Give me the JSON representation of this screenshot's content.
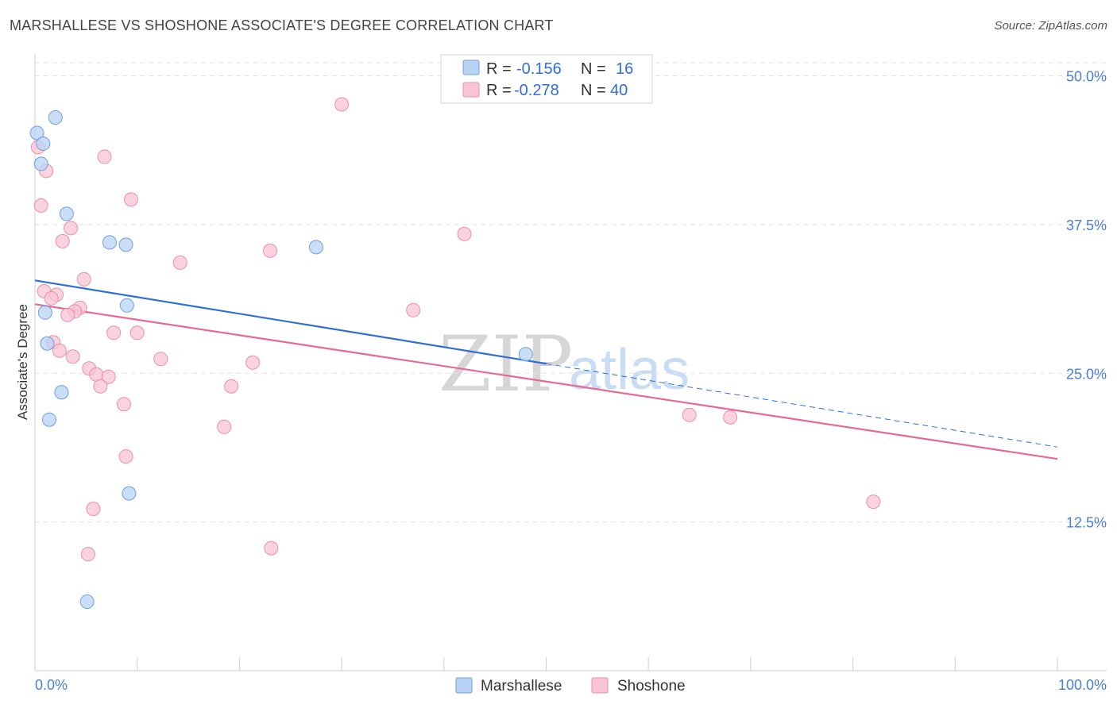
{
  "title": "MARSHALLESE VS SHOSHONE ASSOCIATE'S DEGREE CORRELATION CHART",
  "source": "Source: ZipAtlas.com",
  "watermark": {
    "zip": "ZIP",
    "atlas": "atlas"
  },
  "colors": {
    "marshallese_fill": "#b9d3f5",
    "marshallese_stroke": "#6f9fe0",
    "marshallese_line": "#2f6fd6",
    "shoshone_fill": "#f8c4d4",
    "shoshone_stroke": "#ea8fab",
    "shoshone_line": "#e66a95",
    "grid": "#e3e3e3",
    "tick_label": "#4a7fd0"
  },
  "legend": {
    "r_label": "R =",
    "n_label": "N =",
    "series": [
      {
        "r": "-0.156",
        "n": "16"
      },
      {
        "r": "-0.278",
        "n": "40"
      }
    ]
  },
  "chart_data": {
    "type": "scatter",
    "title": "MARSHALLESE VS SHOSHONE ASSOCIATE'S DEGREE CORRELATION CHART",
    "xlabel": "",
    "ylabel": "Associate's Degree",
    "xlim": [
      0,
      100
    ],
    "ylim": [
      0,
      52
    ],
    "x_tick_labels": [
      "0.0%",
      "100.0%"
    ],
    "y_ticks": [
      12.5,
      25.0,
      37.5,
      50.0
    ],
    "y_tick_labels": [
      "12.5%",
      "25.0%",
      "37.5%",
      "50.0%"
    ],
    "grid": true,
    "legend_position": "top-center",
    "series": [
      {
        "name": "Marshallese",
        "points": [
          [
            0.2,
            45.2
          ],
          [
            2.0,
            46.5
          ],
          [
            0.8,
            44.3
          ],
          [
            0.6,
            42.6
          ],
          [
            3.1,
            38.4
          ],
          [
            7.3,
            36.0
          ],
          [
            8.9,
            35.8
          ],
          [
            27.5,
            35.6
          ],
          [
            1.0,
            30.1
          ],
          [
            9.0,
            30.7
          ],
          [
            1.2,
            27.5
          ],
          [
            2.6,
            23.4
          ],
          [
            1.4,
            21.1
          ],
          [
            9.2,
            14.9
          ],
          [
            5.1,
            5.8
          ],
          [
            48.0,
            26.6
          ]
        ],
        "trend": {
          "x_solid": [
            0,
            50
          ],
          "y_solid": [
            32.8,
            25.8
          ],
          "x_dashed": [
            50,
            100
          ],
          "y_dashed": [
            25.8,
            18.8
          ]
        }
      },
      {
        "name": "Shoshone",
        "points": [
          [
            30.0,
            47.6
          ],
          [
            0.3,
            44.0
          ],
          [
            6.8,
            43.2
          ],
          [
            1.1,
            42.0
          ],
          [
            9.4,
            39.6
          ],
          [
            0.6,
            39.1
          ],
          [
            3.5,
            37.2
          ],
          [
            42.0,
            36.7
          ],
          [
            2.7,
            36.1
          ],
          [
            23.0,
            35.3
          ],
          [
            14.2,
            34.3
          ],
          [
            4.8,
            32.9
          ],
          [
            0.9,
            31.9
          ],
          [
            2.1,
            31.6
          ],
          [
            1.6,
            31.3
          ],
          [
            4.4,
            30.5
          ],
          [
            3.9,
            30.2
          ],
          [
            3.2,
            29.9
          ],
          [
            37.0,
            30.3
          ],
          [
            7.7,
            28.4
          ],
          [
            10.0,
            28.4
          ],
          [
            1.8,
            27.6
          ],
          [
            2.4,
            26.9
          ],
          [
            3.7,
            26.4
          ],
          [
            12.3,
            26.2
          ],
          [
            21.3,
            25.9
          ],
          [
            5.3,
            25.4
          ],
          [
            6.0,
            24.9
          ],
          [
            7.2,
            24.7
          ],
          [
            6.4,
            23.9
          ],
          [
            19.2,
            23.9
          ],
          [
            8.7,
            22.4
          ],
          [
            64.0,
            21.5
          ],
          [
            68.0,
            21.3
          ],
          [
            18.5,
            20.5
          ],
          [
            8.9,
            18.0
          ],
          [
            82.0,
            14.2
          ],
          [
            5.7,
            13.6
          ],
          [
            23.1,
            10.3
          ],
          [
            5.2,
            9.8
          ]
        ],
        "trend": {
          "x_solid": [
            0,
            100
          ],
          "y_solid": [
            30.8,
            17.8
          ]
        }
      }
    ]
  },
  "bottom_legend": [
    "Marshallese",
    "Shoshone"
  ]
}
